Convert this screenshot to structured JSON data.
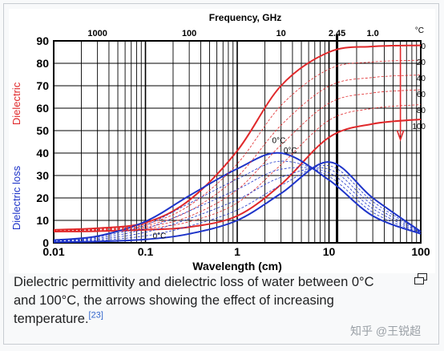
{
  "caption": {
    "text": "Dielectric permittivity and dielectric loss of water between 0°C and 100°C, the arrows showing the effect of increasing temperature.",
    "reference": "[23]"
  },
  "watermark": "知乎 @王锐超",
  "icons": {
    "enlarge": "enlarge-icon"
  },
  "chart_data": {
    "type": "line",
    "xlabel": "Wavelength (cm)",
    "top_axis_label": "Frequency, GHz",
    "x_scale": "log",
    "xlim": [
      0.01,
      100
    ],
    "ylim": [
      0,
      90
    ],
    "x_ticks": [
      "0.01",
      "0.1",
      "1",
      "10",
      "100"
    ],
    "y_ticks": [
      "0",
      "10",
      "20",
      "30",
      "40",
      "50",
      "60",
      "70",
      "80",
      "90"
    ],
    "top_ticks": [
      {
        "label": "1000",
        "wavelength_cm": 0.03
      },
      {
        "label": "100",
        "wavelength_cm": 0.3
      },
      {
        "label": "10",
        "wavelength_cm": 3
      },
      {
        "label": "2.45",
        "wavelength_cm": 12.24
      },
      {
        "label": "1.0",
        "wavelength_cm": 30
      }
    ],
    "highlight_wavelength_cm": 12.24,
    "ylabel_permittivity": "Dielectric",
    "ylabel_loss": "Dielectric loss",
    "temperature_unit": "°C",
    "temperature_labels": [
      "0",
      "20",
      "40",
      "60",
      "80",
      "100"
    ],
    "annotations": [
      "0°C",
      "0°C",
      "0°C"
    ],
    "colors": {
      "permittivity": "#e0292b",
      "loss": "#1f35c9",
      "grid": "#000000"
    },
    "series": [
      {
        "group": "permittivity",
        "temperature": 0,
        "x": [
          0.01,
          0.03,
          0.1,
          0.3,
          1,
          3,
          10,
          30,
          100
        ],
        "values": [
          5.8,
          6.5,
          9,
          19,
          41,
          70,
          85,
          87.5,
          88
        ]
      },
      {
        "group": "permittivity",
        "temperature": 100,
        "x": [
          0.01,
          0.03,
          0.1,
          0.3,
          1,
          3,
          10,
          30,
          100
        ],
        "values": [
          5,
          5.2,
          5.8,
          7,
          12,
          26,
          47,
          53,
          55
        ]
      },
      {
        "group": "loss",
        "temperature": 0,
        "x": [
          0.01,
          0.03,
          0.1,
          0.3,
          1,
          3,
          10,
          30,
          100
        ],
        "values": [
          1.2,
          3,
          9.5,
          21,
          33,
          40,
          28,
          12,
          4
        ]
      },
      {
        "group": "loss",
        "temperature": 100,
        "x": [
          0.01,
          0.03,
          0.1,
          0.3,
          1,
          3,
          10,
          30,
          100
        ],
        "values": [
          0.3,
          0.6,
          1.5,
          4,
          10,
          22,
          36,
          20,
          5
        ]
      }
    ]
  }
}
